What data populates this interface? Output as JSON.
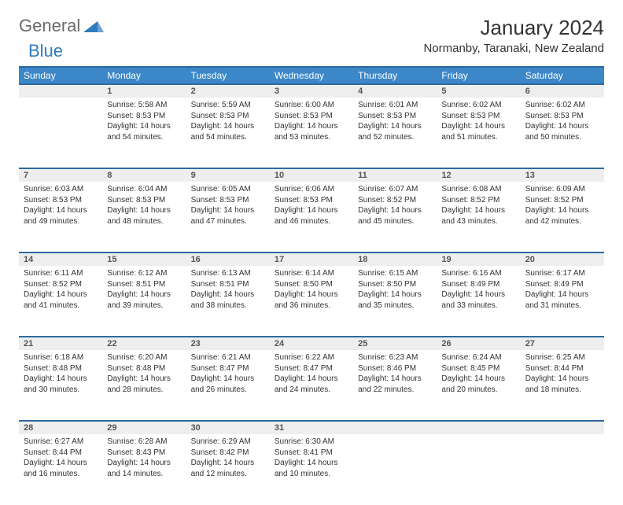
{
  "logo": {
    "text1": "General",
    "text2": "Blue"
  },
  "header": {
    "title": "January 2024",
    "location": "Normanby, Taranaki, New Zealand"
  },
  "colors": {
    "header_bg": "#3b87c8",
    "rule": "#2f6aa0",
    "daynum_bg": "#eeeeee"
  },
  "columns": [
    "Sunday",
    "Monday",
    "Tuesday",
    "Wednesday",
    "Thursday",
    "Friday",
    "Saturday"
  ],
  "weeks": [
    {
      "nums": [
        "",
        "1",
        "2",
        "3",
        "4",
        "5",
        "6"
      ],
      "cells": [
        null,
        {
          "sunrise": "5:58 AM",
          "sunset": "8:53 PM",
          "daylight": "14 hours and 54 minutes."
        },
        {
          "sunrise": "5:59 AM",
          "sunset": "8:53 PM",
          "daylight": "14 hours and 54 minutes."
        },
        {
          "sunrise": "6:00 AM",
          "sunset": "8:53 PM",
          "daylight": "14 hours and 53 minutes."
        },
        {
          "sunrise": "6:01 AM",
          "sunset": "8:53 PM",
          "daylight": "14 hours and 52 minutes."
        },
        {
          "sunrise": "6:02 AM",
          "sunset": "8:53 PM",
          "daylight": "14 hours and 51 minutes."
        },
        {
          "sunrise": "6:02 AM",
          "sunset": "8:53 PM",
          "daylight": "14 hours and 50 minutes."
        }
      ]
    },
    {
      "nums": [
        "7",
        "8",
        "9",
        "10",
        "11",
        "12",
        "13"
      ],
      "cells": [
        {
          "sunrise": "6:03 AM",
          "sunset": "8:53 PM",
          "daylight": "14 hours and 49 minutes."
        },
        {
          "sunrise": "6:04 AM",
          "sunset": "8:53 PM",
          "daylight": "14 hours and 48 minutes."
        },
        {
          "sunrise": "6:05 AM",
          "sunset": "8:53 PM",
          "daylight": "14 hours and 47 minutes."
        },
        {
          "sunrise": "6:06 AM",
          "sunset": "8:53 PM",
          "daylight": "14 hours and 46 minutes."
        },
        {
          "sunrise": "6:07 AM",
          "sunset": "8:52 PM",
          "daylight": "14 hours and 45 minutes."
        },
        {
          "sunrise": "6:08 AM",
          "sunset": "8:52 PM",
          "daylight": "14 hours and 43 minutes."
        },
        {
          "sunrise": "6:09 AM",
          "sunset": "8:52 PM",
          "daylight": "14 hours and 42 minutes."
        }
      ]
    },
    {
      "nums": [
        "14",
        "15",
        "16",
        "17",
        "18",
        "19",
        "20"
      ],
      "cells": [
        {
          "sunrise": "6:11 AM",
          "sunset": "8:52 PM",
          "daylight": "14 hours and 41 minutes."
        },
        {
          "sunrise": "6:12 AM",
          "sunset": "8:51 PM",
          "daylight": "14 hours and 39 minutes."
        },
        {
          "sunrise": "6:13 AM",
          "sunset": "8:51 PM",
          "daylight": "14 hours and 38 minutes."
        },
        {
          "sunrise": "6:14 AM",
          "sunset": "8:50 PM",
          "daylight": "14 hours and 36 minutes."
        },
        {
          "sunrise": "6:15 AM",
          "sunset": "8:50 PM",
          "daylight": "14 hours and 35 minutes."
        },
        {
          "sunrise": "6:16 AM",
          "sunset": "8:49 PM",
          "daylight": "14 hours and 33 minutes."
        },
        {
          "sunrise": "6:17 AM",
          "sunset": "8:49 PM",
          "daylight": "14 hours and 31 minutes."
        }
      ]
    },
    {
      "nums": [
        "21",
        "22",
        "23",
        "24",
        "25",
        "26",
        "27"
      ],
      "cells": [
        {
          "sunrise": "6:18 AM",
          "sunset": "8:48 PM",
          "daylight": "14 hours and 30 minutes."
        },
        {
          "sunrise": "6:20 AM",
          "sunset": "8:48 PM",
          "daylight": "14 hours and 28 minutes."
        },
        {
          "sunrise": "6:21 AM",
          "sunset": "8:47 PM",
          "daylight": "14 hours and 26 minutes."
        },
        {
          "sunrise": "6:22 AM",
          "sunset": "8:47 PM",
          "daylight": "14 hours and 24 minutes."
        },
        {
          "sunrise": "6:23 AM",
          "sunset": "8:46 PM",
          "daylight": "14 hours and 22 minutes."
        },
        {
          "sunrise": "6:24 AM",
          "sunset": "8:45 PM",
          "daylight": "14 hours and 20 minutes."
        },
        {
          "sunrise": "6:25 AM",
          "sunset": "8:44 PM",
          "daylight": "14 hours and 18 minutes."
        }
      ]
    },
    {
      "nums": [
        "28",
        "29",
        "30",
        "31",
        "",
        "",
        ""
      ],
      "cells": [
        {
          "sunrise": "6:27 AM",
          "sunset": "8:44 PM",
          "daylight": "14 hours and 16 minutes."
        },
        {
          "sunrise": "6:28 AM",
          "sunset": "8:43 PM",
          "daylight": "14 hours and 14 minutes."
        },
        {
          "sunrise": "6:29 AM",
          "sunset": "8:42 PM",
          "daylight": "14 hours and 12 minutes."
        },
        {
          "sunrise": "6:30 AM",
          "sunset": "8:41 PM",
          "daylight": "14 hours and 10 minutes."
        },
        null,
        null,
        null
      ]
    }
  ],
  "labels": {
    "sunrise": "Sunrise: ",
    "sunset": "Sunset: ",
    "daylight": "Daylight: "
  }
}
